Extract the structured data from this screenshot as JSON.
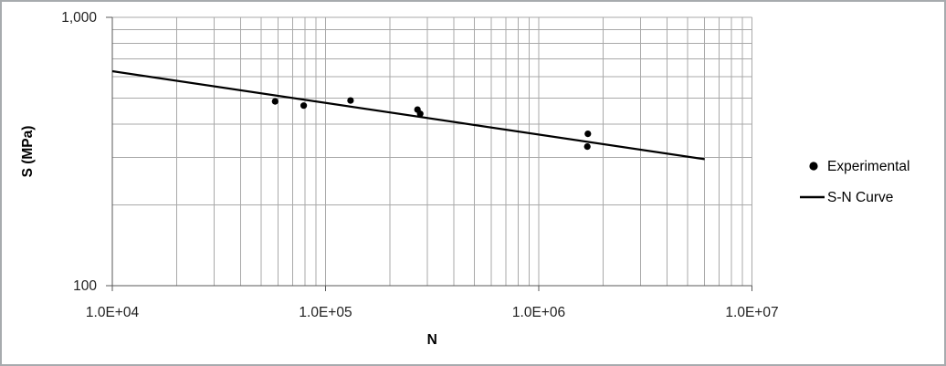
{
  "chart_data": {
    "type": "scatter",
    "title": "",
    "xlabel": "N",
    "ylabel": "S (MPa)",
    "x_scale": "log",
    "y_scale": "log",
    "xlim": [
      10000,
      10000000
    ],
    "ylim": [
      100,
      1000
    ],
    "grid": true,
    "legend_position": "right",
    "x_ticks": [
      {
        "v": 10000,
        "label": "1.0E+04"
      },
      {
        "v": 100000,
        "label": "1.0E+05"
      },
      {
        "v": 1000000,
        "label": "1.0E+06"
      },
      {
        "v": 10000000,
        "label": "1.0E+07"
      }
    ],
    "y_ticks": [
      {
        "v": 1000,
        "label": "1,000"
      },
      {
        "v": 100,
        "label": "100"
      }
    ],
    "series": [
      {
        "name": "Experimental",
        "kind": "scatter",
        "marker": "circle",
        "color": "#000000",
        "points": [
          [
            58000,
            486
          ],
          [
            79000,
            469
          ],
          [
            131000,
            490
          ],
          [
            270000,
            453
          ],
          [
            278000,
            437
          ],
          [
            1700000,
            368
          ],
          [
            1690000,
            330
          ]
        ]
      },
      {
        "name": "S-N Curve",
        "kind": "line",
        "color": "#000000",
        "points": [
          [
            10000,
            630
          ],
          [
            6000000,
            296
          ]
        ]
      }
    ]
  },
  "colors": {
    "background": "#ffffff",
    "grid": "#a9a9a9",
    "axis": "#595959",
    "tick_text": "#1f1f1f",
    "title_text": "#000000",
    "series": "#000000",
    "frame_border": "#a7abae"
  }
}
